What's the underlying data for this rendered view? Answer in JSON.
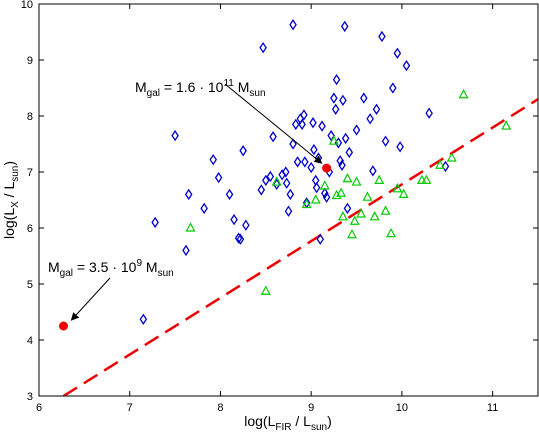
{
  "chart_data": {
    "type": "scatter",
    "title": "",
    "xlabel": {
      "main": "log(L",
      "sub1": "FIR",
      "mid": " / L",
      "sub2": "sun",
      "end": ")"
    },
    "ylabel": {
      "main": "log(L",
      "sub1": "X",
      "mid": " / L",
      "sub2": "sun",
      "end": ")"
    },
    "xlim": [
      6,
      11.5
    ],
    "ylim": [
      3,
      10
    ],
    "xticks": [
      "6",
      "7",
      "8",
      "9",
      "10",
      "11"
    ],
    "yticks": [
      "3",
      "4",
      "5",
      "6",
      "7",
      "8",
      "9",
      "10"
    ],
    "grid": false,
    "colors": {
      "blue": "#0000cc",
      "green": "#00cc00",
      "red": "#ee0000",
      "axis": "#000000"
    },
    "series": [
      {
        "marker": "diamond",
        "color": "#0000cc",
        "points": [
          [
            7.15,
            4.37
          ],
          [
            7.28,
            6.1
          ],
          [
            7.5,
            7.65
          ],
          [
            7.62,
            5.6
          ],
          [
            7.65,
            6.6
          ],
          [
            7.82,
            6.35
          ],
          [
            7.92,
            7.22
          ],
          [
            7.98,
            6.9
          ],
          [
            8.1,
            6.6
          ],
          [
            8.15,
            6.15
          ],
          [
            8.2,
            5.82
          ],
          [
            8.22,
            5.8
          ],
          [
            8.25,
            7.38
          ],
          [
            8.28,
            6.05
          ],
          [
            8.45,
            6.68
          ],
          [
            8.47,
            9.22
          ],
          [
            8.5,
            6.85
          ],
          [
            8.55,
            6.92
          ],
          [
            8.58,
            7.63
          ],
          [
            8.62,
            6.78
          ],
          [
            8.68,
            6.95
          ],
          [
            8.72,
            7.0
          ],
          [
            8.73,
            6.8
          ],
          [
            8.75,
            6.3
          ],
          [
            8.77,
            6.6
          ],
          [
            8.8,
            7.5
          ],
          [
            8.8,
            9.63
          ],
          [
            8.83,
            7.85
          ],
          [
            8.85,
            7.18
          ],
          [
            8.88,
            7.95
          ],
          [
            8.9,
            7.85
          ],
          [
            8.92,
            8.02
          ],
          [
            8.93,
            7.18
          ],
          [
            8.95,
            6.45
          ],
          [
            9.0,
            7.08
          ],
          [
            9.02,
            7.88
          ],
          [
            9.03,
            7.4
          ],
          [
            9.05,
            6.85
          ],
          [
            9.06,
            6.72
          ],
          [
            9.08,
            7.25
          ],
          [
            9.1,
            5.8
          ],
          [
            9.12,
            7.82
          ],
          [
            9.15,
            6.62
          ],
          [
            9.17,
            6.55
          ],
          [
            9.2,
            7.0
          ],
          [
            9.22,
            7.65
          ],
          [
            9.25,
            8.32
          ],
          [
            9.27,
            8.12
          ],
          [
            9.28,
            8.65
          ],
          [
            9.3,
            7.52
          ],
          [
            9.32,
            7.2
          ],
          [
            9.34,
            7.12
          ],
          [
            9.35,
            8.28
          ],
          [
            9.37,
            9.6
          ],
          [
            9.38,
            7.6
          ],
          [
            9.4,
            6.35
          ],
          [
            9.42,
            7.35
          ],
          [
            9.5,
            7.75
          ],
          [
            9.58,
            8.32
          ],
          [
            9.65,
            7.95
          ],
          [
            9.68,
            7.02
          ],
          [
            9.72,
            8.12
          ],
          [
            9.78,
            9.42
          ],
          [
            9.82,
            7.55
          ],
          [
            9.9,
            8.5
          ],
          [
            9.95,
            9.12
          ],
          [
            9.98,
            7.45
          ],
          [
            10.05,
            8.9
          ],
          [
            10.3,
            8.05
          ],
          [
            10.48,
            7.1
          ]
        ]
      },
      {
        "marker": "triangle",
        "color": "#00cc00",
        "points": [
          [
            7.67,
            6.0
          ],
          [
            8.5,
            4.87
          ],
          [
            8.62,
            6.82
          ],
          [
            8.95,
            6.42
          ],
          [
            9.05,
            6.5
          ],
          [
            9.15,
            6.75
          ],
          [
            9.25,
            7.55
          ],
          [
            9.28,
            6.58
          ],
          [
            9.33,
            6.62
          ],
          [
            9.35,
            6.2
          ],
          [
            9.4,
            6.88
          ],
          [
            9.45,
            5.88
          ],
          [
            9.48,
            6.12
          ],
          [
            9.5,
            6.82
          ],
          [
            9.55,
            6.25
          ],
          [
            9.62,
            6.55
          ],
          [
            9.7,
            6.2
          ],
          [
            9.75,
            6.85
          ],
          [
            9.82,
            6.3
          ],
          [
            9.88,
            5.9
          ],
          [
            9.95,
            6.7
          ],
          [
            10.02,
            6.6
          ],
          [
            10.22,
            6.85
          ],
          [
            10.27,
            6.85
          ],
          [
            10.42,
            7.12
          ],
          [
            10.55,
            7.25
          ],
          [
            10.68,
            8.38
          ],
          [
            11.15,
            7.82
          ]
        ]
      }
    ],
    "highlight_points": [
      [
        6.27,
        4.25
      ],
      [
        9.17,
        7.07
      ]
    ],
    "trend_line": {
      "x": [
        6.27,
        11.5
      ],
      "y": [
        3.0,
        8.3
      ]
    },
    "annotations": [
      {
        "lead": "M",
        "sub": "gal",
        "mid": " = 1.6 · 10",
        "sup": "11",
        "unit": " M",
        "unitsub": "sun"
      },
      {
        "lead": "M",
        "sub": "gal",
        "mid": " = 3.5 · 10",
        "sup": "9",
        "unit": " M",
        "unitsub": "sun"
      }
    ]
  }
}
